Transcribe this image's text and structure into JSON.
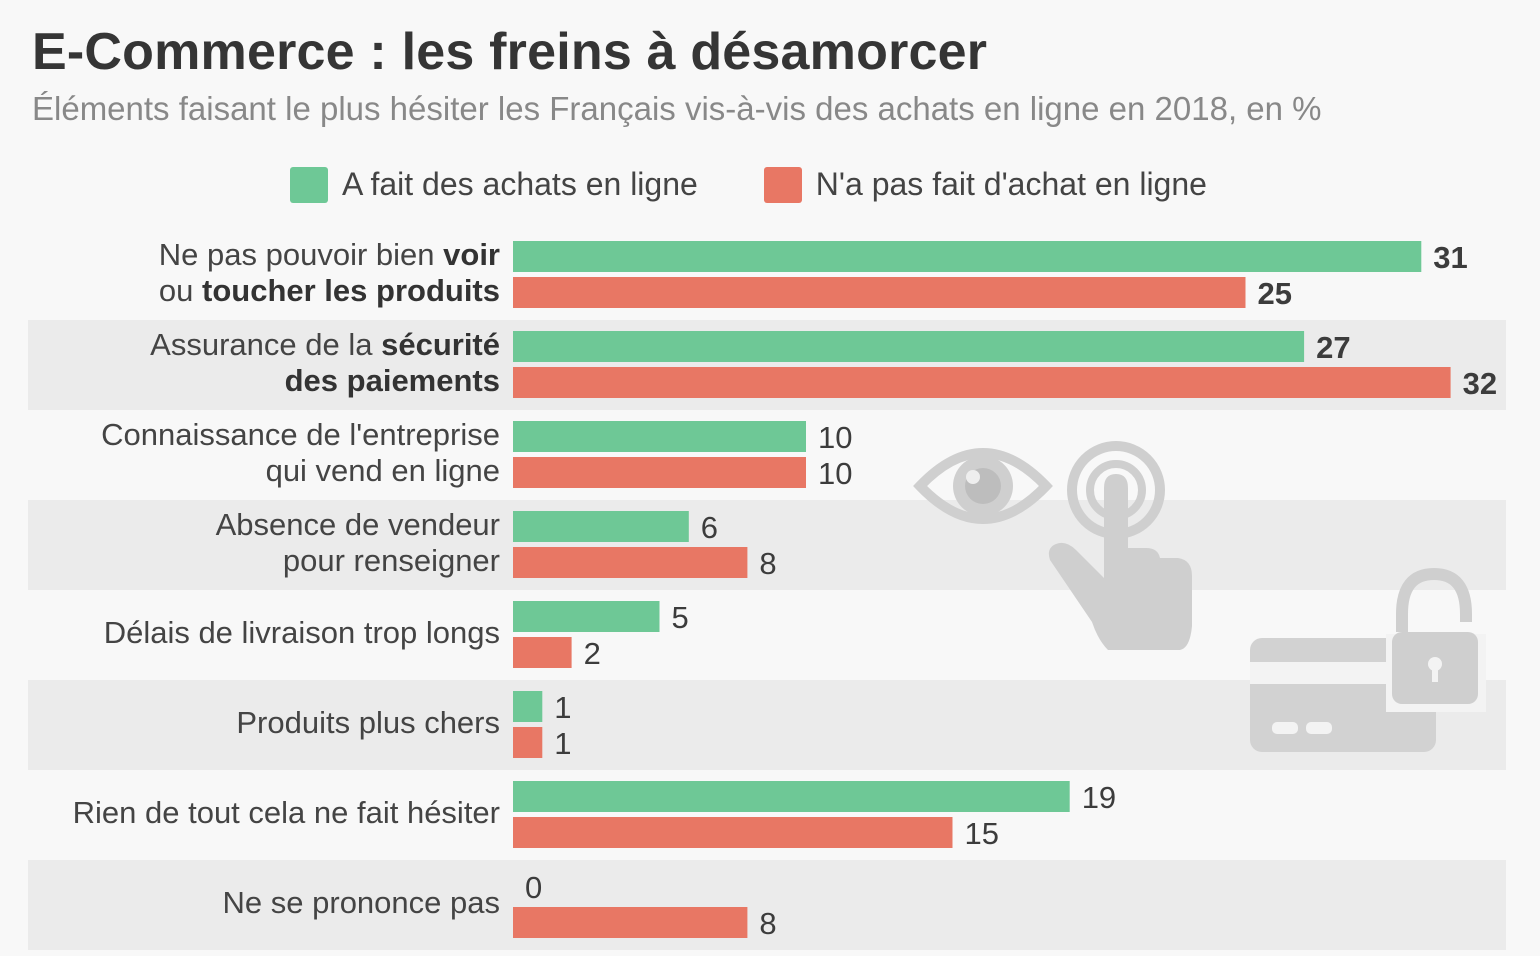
{
  "title": "E-Commerce : les freins à désamorcer",
  "subtitle": "Éléments faisant le plus hésiter les Français vis-à-vis des achats en ligne en 2018, en %",
  "legend": {
    "series1": "A fait des achats en ligne",
    "series2": "N'a pas fait d'achat en ligne"
  },
  "colors": {
    "green": "#6ec896",
    "red": "#e87764",
    "band": "#ebebeb",
    "zero_label": "#6ec896"
  },
  "icons": [
    "eye-icon",
    "touch-hand-icon",
    "credit-card-icon",
    "padlock-icon"
  ],
  "chart_data": {
    "type": "bar",
    "orientation": "horizontal",
    "categories": [
      "Ne pas pouvoir bien voir ou toucher les produits",
      "Assurance de la sécurité des paiements",
      "Connaissance de l'entreprise qui vend en ligne",
      "Absence de vendeur pour renseigner",
      "Délais de livraison trop longs",
      "Produits plus chers",
      "Rien de tout cela ne fait hésiter",
      "Ne se prononce pas"
    ],
    "category_label_lines": [
      [
        {
          "t": "Ne pas pouvoir bien ",
          "b": false
        },
        {
          "t": "voir",
          "b": true
        }
      ],
      [
        {
          "t": "ou ",
          "b": false
        },
        {
          "t": "toucher les produits",
          "b": true
        }
      ],
      [
        {
          "t": "Assurance de la ",
          "b": false
        },
        {
          "t": "sécurité",
          "b": true
        }
      ],
      [
        {
          "t": "des paiements",
          "b": true
        }
      ],
      [
        {
          "t": "Connaissance de l'entreprise",
          "b": false
        }
      ],
      [
        {
          "t": "qui vend en ligne",
          "b": false
        }
      ],
      [
        {
          "t": "Absence de vendeur",
          "b": false
        }
      ],
      [
        {
          "t": "pour renseigner",
          "b": false
        }
      ],
      [
        {
          "t": "Délais de livraison trop longs",
          "b": false
        }
      ],
      [
        {
          "t": "Produits plus chers",
          "b": false
        }
      ],
      [
        {
          "t": "Rien de tout cela ne fait hésiter",
          "b": false
        }
      ],
      [
        {
          "t": "Ne se prononce pas",
          "b": false
        }
      ]
    ],
    "series": [
      {
        "name": "A fait des achats en ligne",
        "color": "#6ec896",
        "values": [
          31,
          27,
          10,
          6,
          5,
          1,
          19,
          0
        ]
      },
      {
        "name": "N'a pas fait d'achat en ligne",
        "color": "#e87764",
        "values": [
          25,
          32,
          10,
          8,
          2,
          1,
          15,
          8
        ]
      }
    ],
    "xlim": [
      0,
      32
    ],
    "grid": false,
    "legend_position": "top"
  }
}
